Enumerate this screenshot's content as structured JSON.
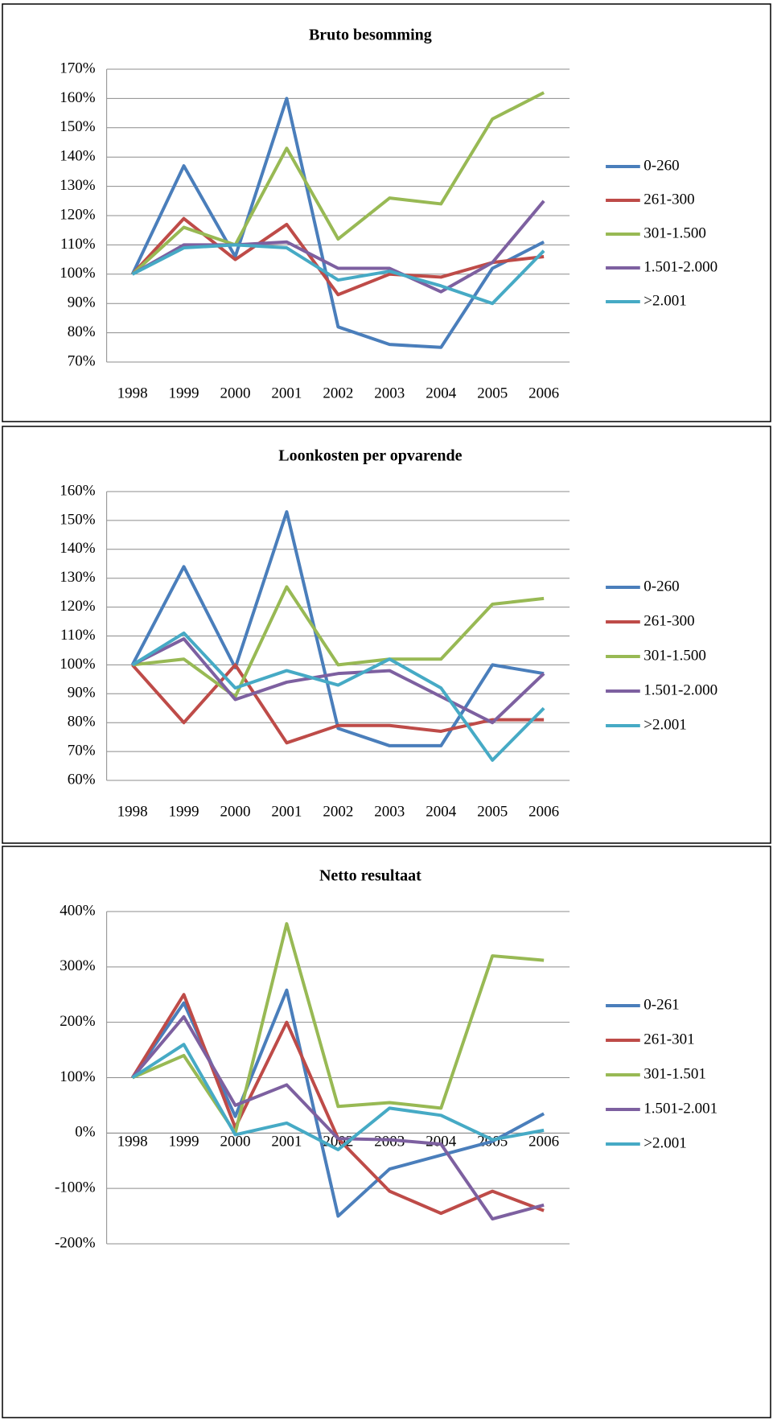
{
  "chart_data": [
    {
      "type": "line",
      "title": "Bruto besomming",
      "categories": [
        "1998",
        "1999",
        "2000",
        "2001",
        "2002",
        "2003",
        "2004",
        "2005",
        "2006"
      ],
      "ylim": [
        70,
        170
      ],
      "yticks": [
        {
          "value": 70,
          "label": "70%"
        },
        {
          "value": 80,
          "label": "80%"
        },
        {
          "value": 90,
          "label": "90%"
        },
        {
          "value": 100,
          "label": "100%"
        },
        {
          "value": 110,
          "label": "110%"
        },
        {
          "value": 120,
          "label": "120%"
        },
        {
          "value": 130,
          "label": "130%"
        },
        {
          "value": 140,
          "label": "140%"
        },
        {
          "value": 150,
          "label": "150%"
        },
        {
          "value": 160,
          "label": "160%"
        },
        {
          "value": 170,
          "label": "170%"
        }
      ],
      "grid": true,
      "series": [
        {
          "name": "0-260",
          "color": "#4a7ebb",
          "values": [
            100,
            137,
            106,
            160,
            82,
            76,
            75,
            102,
            111
          ]
        },
        {
          "name": "261-300",
          "color": "#be4b48",
          "values": [
            100,
            119,
            105,
            117,
            93,
            100,
            99,
            104,
            106
          ]
        },
        {
          "name": "301-1.500",
          "color": "#98b954",
          "values": [
            100,
            116,
            110,
            143,
            112,
            126,
            124,
            153,
            162
          ]
        },
        {
          "name": "1.501-2.000",
          "color": "#7d60a0",
          "values": [
            100,
            110,
            110,
            111,
            102,
            102,
            94,
            104,
            125
          ]
        },
        {
          "name": ">2.001",
          "color": "#46aac5",
          "values": [
            100,
            109,
            110,
            109,
            98,
            101,
            96,
            90,
            108
          ]
        }
      ]
    },
    {
      "type": "line",
      "title": "Loonkosten per opvarende",
      "categories": [
        "1998",
        "1999",
        "2000",
        "2001",
        "2002",
        "2003",
        "2004",
        "2005",
        "2006"
      ],
      "ylim": [
        60,
        160
      ],
      "yticks": [
        {
          "value": 60,
          "label": "60%"
        },
        {
          "value": 70,
          "label": "70%"
        },
        {
          "value": 80,
          "label": "80%"
        },
        {
          "value": 90,
          "label": "90%"
        },
        {
          "value": 100,
          "label": "100%"
        },
        {
          "value": 110,
          "label": "110%"
        },
        {
          "value": 120,
          "label": "120%"
        },
        {
          "value": 130,
          "label": "130%"
        },
        {
          "value": 140,
          "label": "140%"
        },
        {
          "value": 150,
          "label": "150%"
        },
        {
          "value": 160,
          "label": "160%"
        }
      ],
      "grid": true,
      "series": [
        {
          "name": "0-260",
          "color": "#4a7ebb",
          "values": [
            100,
            134,
            99,
            153,
            78,
            72,
            72,
            100,
            97
          ]
        },
        {
          "name": "261-300",
          "color": "#be4b48",
          "values": [
            100,
            80,
            100,
            73,
            79,
            79,
            77,
            81,
            81
          ]
        },
        {
          "name": "301-1.500",
          "color": "#98b954",
          "values": [
            100,
            102,
            89,
            127,
            100,
            102,
            102,
            121,
            123
          ]
        },
        {
          "name": "1.501-2.000",
          "color": "#7d60a0",
          "values": [
            100,
            109,
            88,
            94,
            97,
            98,
            89,
            80,
            97
          ]
        },
        {
          "name": ">2.001",
          "color": "#46aac5",
          "values": [
            100,
            111,
            92,
            98,
            93,
            102,
            92,
            67,
            85
          ]
        }
      ]
    },
    {
      "type": "line",
      "title": "Netto resultaat",
      "categories": [
        "1998",
        "1999",
        "2000",
        "2001",
        "2002",
        "2003",
        "2004",
        "2005",
        "2006"
      ],
      "ylim": [
        -200,
        400
      ],
      "yticks": [
        {
          "value": -200,
          "label": "-200%"
        },
        {
          "value": -100,
          "label": "-100%"
        },
        {
          "value": 0,
          "label": "0%"
        },
        {
          "value": 100,
          "label": "100%"
        },
        {
          "value": 200,
          "label": "200%"
        },
        {
          "value": 300,
          "label": "300%"
        },
        {
          "value": 400,
          "label": "400%"
        }
      ],
      "grid": true,
      "series": [
        {
          "name": "0-261",
          "color": "#4a7ebb",
          "values": [
            100,
            235,
            30,
            258,
            -150,
            -65,
            -40,
            -15,
            35
          ]
        },
        {
          "name": "261-301",
          "color": "#be4b48",
          "values": [
            100,
            250,
            10,
            200,
            -10,
            -105,
            -145,
            -105,
            -140
          ]
        },
        {
          "name": "301-1.501",
          "color": "#98b954",
          "values": [
            100,
            140,
            0,
            378,
            48,
            55,
            45,
            320,
            312
          ]
        },
        {
          "name": "1.501-2.001",
          "color": "#7d60a0",
          "values": [
            100,
            210,
            50,
            87,
            -10,
            -12,
            -20,
            -155,
            -130
          ]
        },
        {
          "name": ">2.001",
          "color": "#46aac5",
          "values": [
            100,
            160,
            -3,
            18,
            -30,
            45,
            32,
            -12,
            5
          ]
        }
      ]
    }
  ]
}
